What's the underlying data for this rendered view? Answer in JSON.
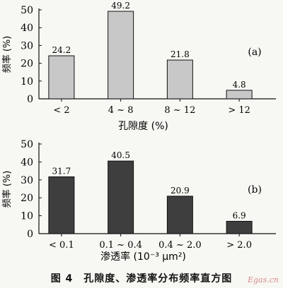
{
  "chart_data": [
    {
      "type": "bar",
      "categories": [
        "< 2",
        "4 ~ 8",
        "8 ~ 12",
        "> 12"
      ],
      "values": [
        24.2,
        49.2,
        21.8,
        4.8
      ],
      "data_labels": [
        "24.2",
        "49.2",
        "21.8",
        "4.8"
      ],
      "xlabel": "孔隙度 (%)",
      "ylabel": "频率 (%)",
      "ylim": [
        0,
        50
      ],
      "yticks": [
        0,
        10,
        20,
        30,
        40,
        50
      ],
      "annotation": "(a)",
      "bar_color": "#c8c8c8",
      "grid": false
    },
    {
      "type": "bar",
      "categories": [
        "< 0.1",
        "0.1 ~ 0.4",
        "0.4 ~ 2.0",
        "> 2.0"
      ],
      "values": [
        31.7,
        40.5,
        20.9,
        6.9
      ],
      "data_labels": [
        "31.7",
        "40.5",
        "20.9",
        "6.9"
      ],
      "xlabel": "渗透率 (10⁻³ μm²)",
      "ylabel": "频率 (%)",
      "ylim": [
        0,
        50
      ],
      "yticks": [
        0,
        10,
        20,
        30,
        40,
        50
      ],
      "annotation": "(b)",
      "bar_color": "#3e3e3e",
      "grid": false
    }
  ],
  "caption": "图 4　孔隙度、渗透率分布频率直方图",
  "watermark": "Egas.cn"
}
